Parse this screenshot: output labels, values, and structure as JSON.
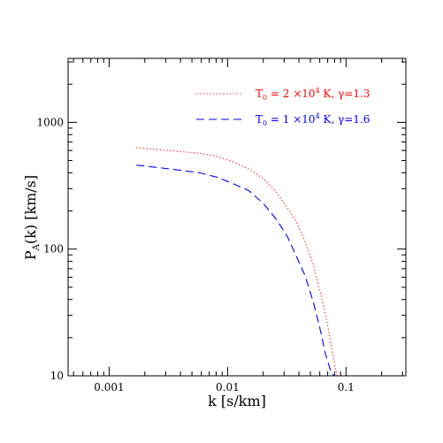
{
  "chart_data": {
    "type": "line",
    "xscale": "log",
    "yscale": "log",
    "xlim": [
      0.00045,
      0.32
    ],
    "ylim": [
      10,
      3200
    ],
    "xlabel": "k [s/km]",
    "ylabel": "P_A(k) [km/s]",
    "xticks": [
      {
        "value": 0.001,
        "label": "0.001"
      },
      {
        "value": 0.01,
        "label": "0.01"
      },
      {
        "value": 0.1,
        "label": "0.1"
      }
    ],
    "yticks": [
      {
        "value": 10,
        "label": "10"
      },
      {
        "value": 100,
        "label": "100"
      },
      {
        "value": 1000,
        "label": "1000"
      }
    ],
    "grid": false,
    "legend_position": "top-right",
    "series": [
      {
        "name": "T0 = 2 ×10⁴ K, γ=1.3",
        "color": "#ff0000",
        "dash": "dotted",
        "x": [
          0.0017,
          0.0026,
          0.0039,
          0.0058,
          0.0081,
          0.011,
          0.015,
          0.02,
          0.026,
          0.032,
          0.038,
          0.045,
          0.053,
          0.062,
          0.07,
          0.078,
          0.084
        ],
        "y": [
          630,
          610,
          590,
          570,
          540,
          490,
          430,
          360,
          280,
          210,
          165,
          115,
          75,
          42,
          25,
          14,
          10
        ]
      },
      {
        "name": "T0 = 1 ×10⁴ K, γ=1.6",
        "color": "#0000ff",
        "dash": "dashed",
        "x": [
          0.0017,
          0.0026,
          0.0039,
          0.0058,
          0.0081,
          0.011,
          0.015,
          0.02,
          0.026,
          0.032,
          0.038,
          0.045,
          0.053,
          0.06,
          0.067,
          0.074,
          0.079
        ],
        "y": [
          460,
          440,
          420,
          400,
          370,
          330,
          290,
          230,
          170,
          125,
          88,
          62,
          38,
          24,
          15,
          11,
          10
        ]
      }
    ]
  },
  "legend": {
    "entries": [
      {
        "prefix": "T",
        "sub": "0",
        "rest": " = 2 ×10",
        "sup": "4",
        "tail": " K, γ=1.3"
      },
      {
        "prefix": "T",
        "sub": "0",
        "rest": " = 1 ×10",
        "sup": "4",
        "tail": " K, γ=1.6"
      }
    ]
  },
  "axes": {
    "ylabel_parts": {
      "main": "P",
      "sub": "A",
      "rest": "(k) [km/s]"
    }
  }
}
